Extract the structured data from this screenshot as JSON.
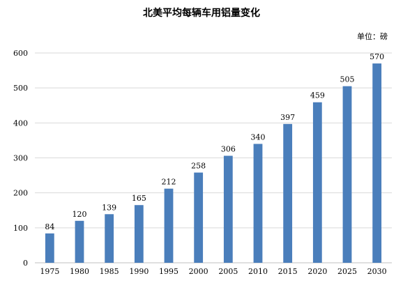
{
  "chart_data": {
    "type": "bar",
    "title": "北美平均每辆车用铝量变化",
    "unit_label": "单位：磅",
    "categories": [
      "1975",
      "1980",
      "1985",
      "1990",
      "1995",
      "2000",
      "2005",
      "2010",
      "2015",
      "2020",
      "2025",
      "2030"
    ],
    "values": [
      84,
      120,
      139,
      165,
      212,
      258,
      306,
      340,
      397,
      459,
      505,
      570
    ],
    "ylim": [
      0,
      600
    ],
    "yticks": [
      0,
      100,
      200,
      300,
      400,
      500,
      600
    ],
    "grid": true,
    "legend": "none",
    "bar_color": "#4a7ebb",
    "grid_color": "#d9d9d9",
    "axis_color": "#bfbfbf"
  }
}
